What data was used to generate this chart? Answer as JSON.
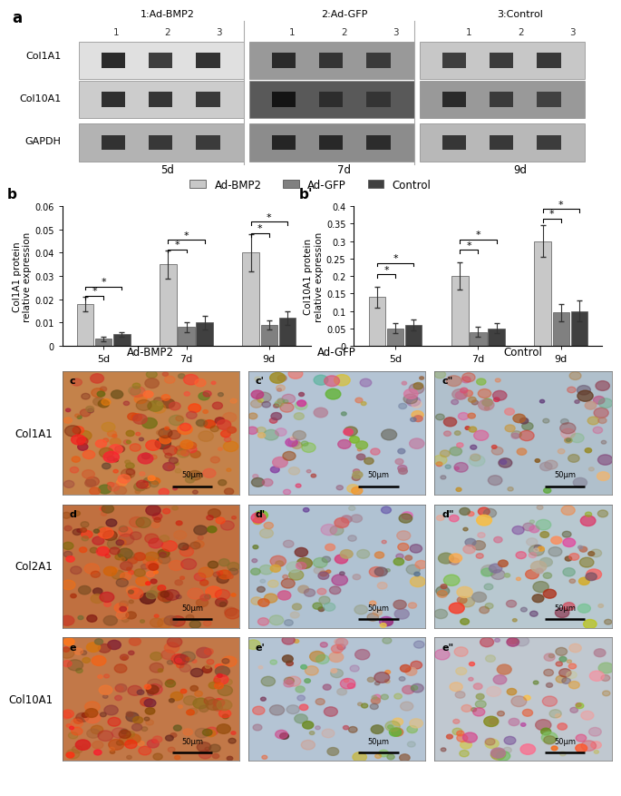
{
  "panel_a_label": "a",
  "col_headers_top": [
    "1:Ad-BMP2",
    "2:Ad-GFP",
    "3:Control"
  ],
  "western_row_labels": [
    "Col1A1",
    "Col10A1",
    "GAPDH"
  ],
  "time_labels": [
    "5d",
    "7d",
    "9d"
  ],
  "legend_labels": [
    "Ad-BMP2",
    "Ad-GFP",
    "Control"
  ],
  "col_headers_bottom": [
    "Ad-BMP2",
    "Ad-GFP",
    "Control"
  ],
  "ihc_row_labels": [
    "Col1A1",
    "Col2A1",
    "Col10A1"
  ],
  "scale_bar_text": "50μm",
  "b_ylabel": "Col1A1 protein\nrelative expression",
  "b_prime_ylabel": "Col10A1 protein\nrelative expression",
  "b_ylim": [
    0,
    0.06
  ],
  "b_yticks": [
    0,
    0.01,
    0.02,
    0.03,
    0.04,
    0.05,
    0.06
  ],
  "b_prime_ylim": [
    0,
    0.4
  ],
  "b_prime_yticks": [
    0,
    0.05,
    0.1,
    0.15,
    0.2,
    0.25,
    0.3,
    0.35,
    0.4
  ],
  "b_data": {
    "Ad-BMP2": [
      0.018,
      0.035,
      0.04
    ],
    "Ad-GFP": [
      0.003,
      0.008,
      0.009
    ],
    "Control": [
      0.005,
      0.01,
      0.012
    ]
  },
  "b_err": {
    "Ad-BMP2": [
      0.003,
      0.006,
      0.008
    ],
    "Ad-GFP": [
      0.001,
      0.002,
      0.002
    ],
    "Control": [
      0.001,
      0.003,
      0.003
    ]
  },
  "b_prime_data": {
    "Ad-BMP2": [
      0.14,
      0.2,
      0.3
    ],
    "Ad-GFP": [
      0.05,
      0.04,
      0.095
    ],
    "Control": [
      0.06,
      0.05,
      0.1
    ]
  },
  "b_prime_err": {
    "Ad-BMP2": [
      0.03,
      0.04,
      0.045
    ],
    "Ad-GFP": [
      0.015,
      0.015,
      0.025
    ],
    "Control": [
      0.015,
      0.015,
      0.03
    ]
  },
  "bar_colors": [
    "#c8c8c8",
    "#808080",
    "#404040"
  ],
  "bar_width": 0.22,
  "time_points": [
    "5d",
    "7d",
    "9d"
  ],
  "ihc_bg_colors": [
    [
      "#c4824a",
      "#b4c4d4",
      "#b0c0cc"
    ],
    [
      "#c07040",
      "#b0c2d2",
      "#b8c8d0"
    ],
    [
      "#c27848",
      "#b4c4d4",
      "#c0c8d0"
    ]
  ],
  "panel_letters": [
    [
      "c",
      "c'",
      "c\""
    ],
    [
      "d",
      "d'",
      "d\""
    ],
    [
      "e",
      "e'",
      "e\""
    ]
  ]
}
